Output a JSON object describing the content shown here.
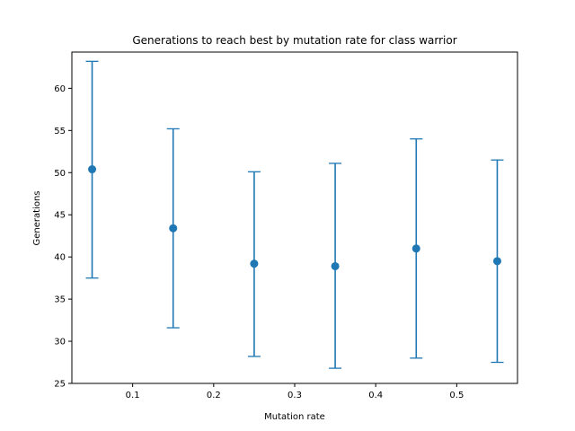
{
  "chart_data": {
    "type": "scatter",
    "title": "Generations to reach best by mutation rate for class warrior",
    "xlabel": "Mutation rate",
    "ylabel": "Generations",
    "xlim": [
      0.025,
      0.575
    ],
    "ylim": [
      25,
      64.3
    ],
    "xticks": [
      0.1,
      0.2,
      0.3,
      0.4,
      0.5
    ],
    "yticks": [
      25,
      30,
      35,
      40,
      45,
      50,
      55,
      60
    ],
    "grid": false,
    "legend": "none",
    "color": "#1f77b4",
    "points": [
      {
        "x": 0.05,
        "y": 50.4,
        "err_low": 37.5,
        "err_high": 63.2
      },
      {
        "x": 0.15,
        "y": 43.4,
        "err_low": 31.6,
        "err_high": 55.2
      },
      {
        "x": 0.25,
        "y": 39.2,
        "err_low": 28.2,
        "err_high": 50.1
      },
      {
        "x": 0.35,
        "y": 38.9,
        "err_low": 26.8,
        "err_high": 51.1
      },
      {
        "x": 0.45,
        "y": 41.0,
        "err_low": 28.0,
        "err_high": 54.0
      },
      {
        "x": 0.55,
        "y": 39.5,
        "err_low": 27.5,
        "err_high": 51.5
      }
    ]
  }
}
